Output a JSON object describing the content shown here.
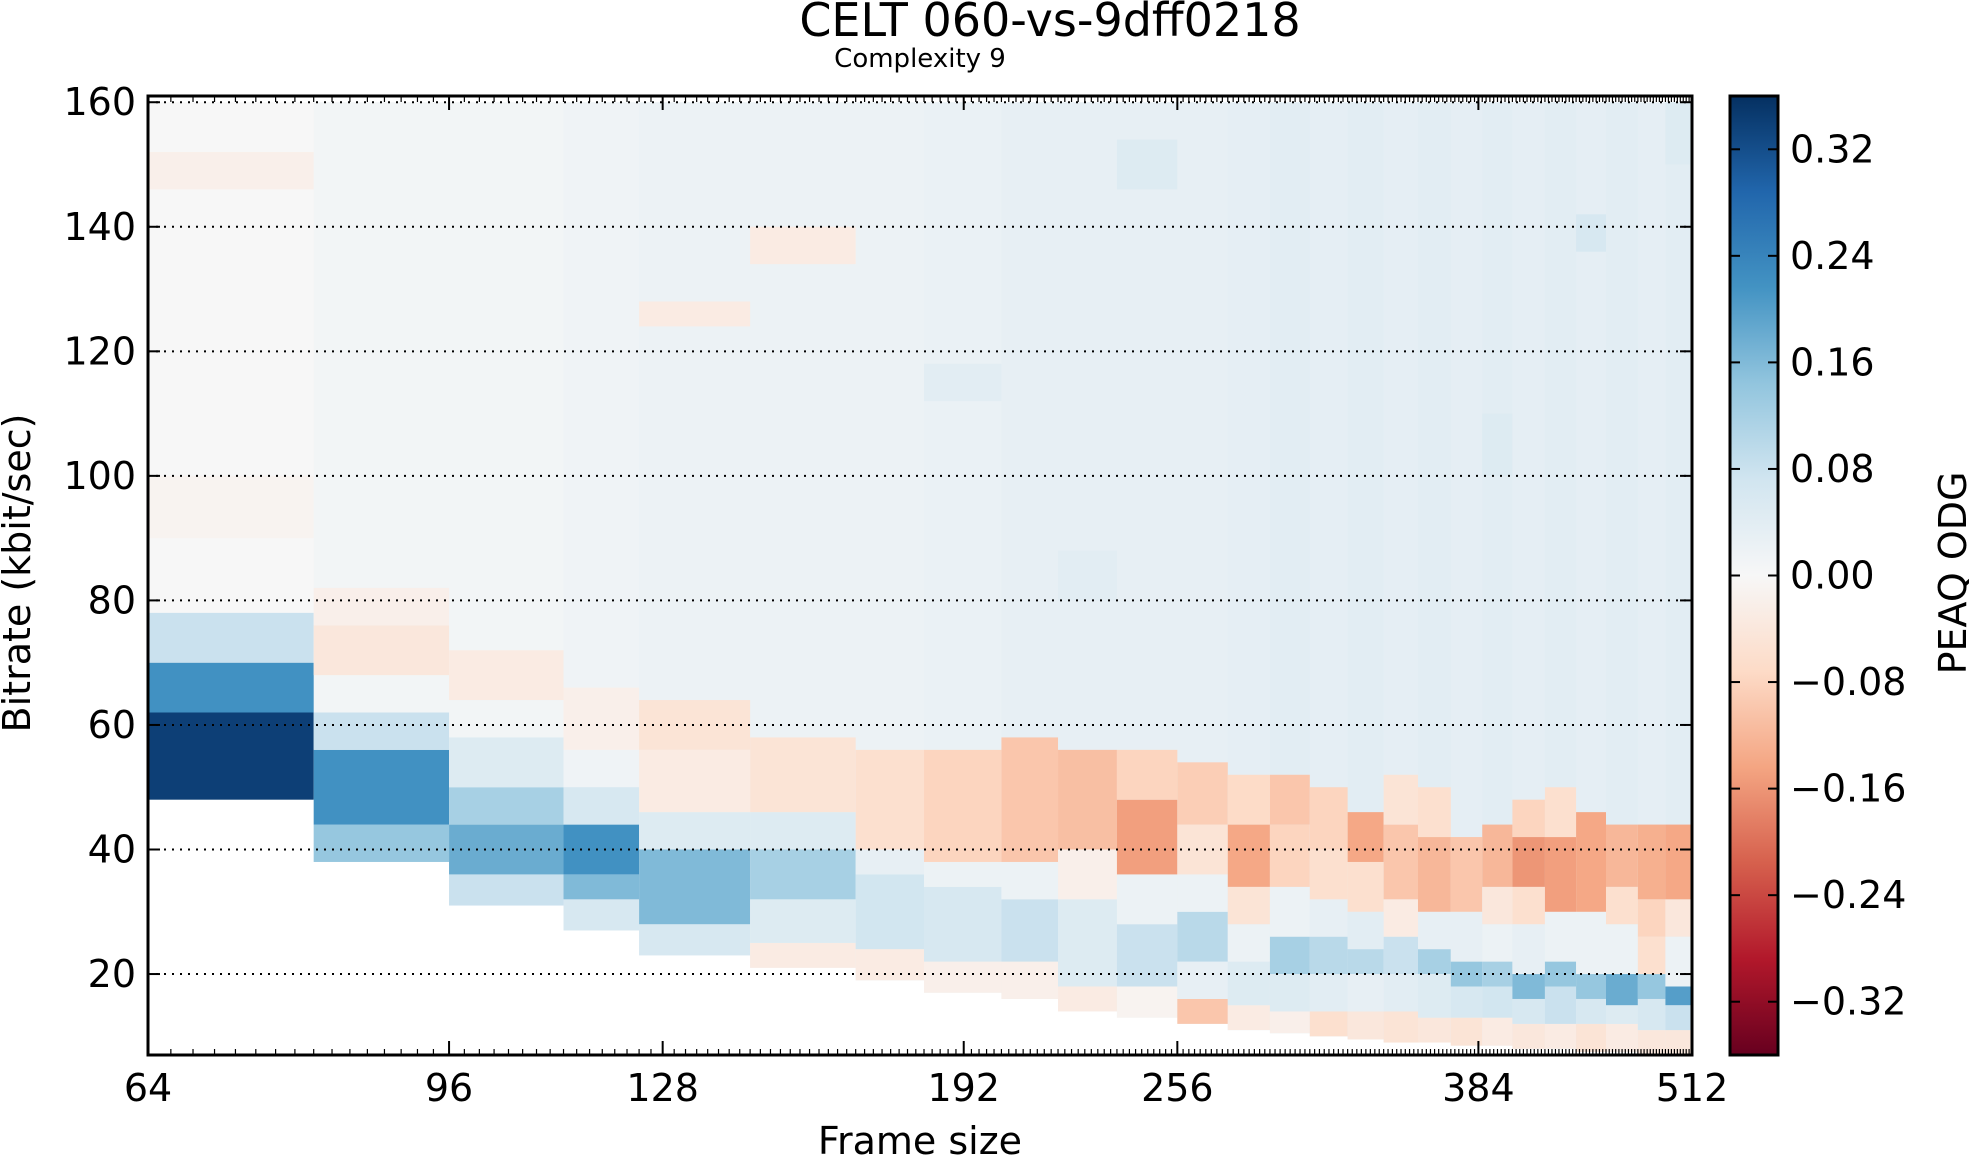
{
  "chart_data": {
    "type": "heatmap",
    "title": "CELT 060-vs-9dff0218",
    "subtitle": "Complexity 9",
    "xlabel": "Frame size",
    "ylabel": "Bitrate (kbit/sec)",
    "x_scale": "log2",
    "xlim": [
      64,
      512
    ],
    "ylim": [
      7,
      161
    ],
    "x_ticks": [
      64,
      96,
      128,
      192,
      256,
      384,
      512
    ],
    "y_ticks": [
      20,
      40,
      60,
      80,
      100,
      120,
      140,
      160
    ],
    "grid": "horizontal dotted at y ticks",
    "colorbar": {
      "label": "PEAQ ODG",
      "colormap": "RdBu",
      "range": [
        -0.36,
        0.36
      ],
      "ticks": [
        0.32,
        0.24,
        0.16,
        0.08,
        0.0,
        -0.08,
        -0.16,
        -0.24,
        -0.32
      ],
      "tick_labels": [
        "0.32",
        "0.24",
        "0.16",
        "0.08",
        "0.00",
        "−0.08",
        "−0.16",
        "−0.24",
        "−0.32"
      ]
    },
    "columns": [
      {
        "x0": 64,
        "x1": 80,
        "ymin": 48,
        "ymax": 160,
        "value": 0.0,
        "bands": [
          {
            "y0": 48,
            "y1": 62,
            "value": 0.34
          },
          {
            "y0": 62,
            "y1": 70,
            "value": 0.22
          },
          {
            "y0": 70,
            "y1": 78,
            "value": 0.08
          },
          {
            "y0": 146,
            "y1": 152,
            "value": -0.02
          },
          {
            "y0": 90,
            "y1": 100,
            "value": -0.01
          }
        ]
      },
      {
        "x0": 80,
        "x1": 96,
        "ymin": 38,
        "ymax": 160,
        "value": 0.01,
        "bands": [
          {
            "y0": 38,
            "y1": 44,
            "value": 0.14
          },
          {
            "y0": 44,
            "y1": 56,
            "value": 0.22
          },
          {
            "y0": 56,
            "y1": 62,
            "value": 0.08
          },
          {
            "y0": 68,
            "y1": 76,
            "value": -0.04
          },
          {
            "y0": 76,
            "y1": 82,
            "value": -0.02
          }
        ]
      },
      {
        "x0": 96,
        "x1": 112,
        "ymin": 31,
        "ymax": 160,
        "value": 0.01,
        "bands": [
          {
            "y0": 31,
            "y1": 36,
            "value": 0.08
          },
          {
            "y0": 36,
            "y1": 44,
            "value": 0.18
          },
          {
            "y0": 44,
            "y1": 50,
            "value": 0.12
          },
          {
            "y0": 50,
            "y1": 58,
            "value": 0.05
          },
          {
            "y0": 64,
            "y1": 72,
            "value": -0.03
          }
        ]
      },
      {
        "x0": 112,
        "x1": 124,
        "ymin": 27,
        "ymax": 160,
        "value": 0.015,
        "bands": [
          {
            "y0": 27,
            "y1": 32,
            "value": 0.06
          },
          {
            "y0": 32,
            "y1": 36,
            "value": 0.16
          },
          {
            "y0": 36,
            "y1": 44,
            "value": 0.22
          },
          {
            "y0": 44,
            "y1": 50,
            "value": 0.06
          },
          {
            "y0": 56,
            "y1": 66,
            "value": -0.02
          }
        ]
      },
      {
        "x0": 124,
        "x1": 144,
        "ymin": 23,
        "ymax": 160,
        "value": 0.02,
        "bands": [
          {
            "y0": 23,
            "y1": 28,
            "value": 0.06
          },
          {
            "y0": 28,
            "y1": 40,
            "value": 0.16
          },
          {
            "y0": 40,
            "y1": 46,
            "value": 0.05
          },
          {
            "y0": 46,
            "y1": 56,
            "value": -0.03
          },
          {
            "y0": 56,
            "y1": 64,
            "value": -0.05
          },
          {
            "y0": 124,
            "y1": 128,
            "value": -0.03
          }
        ]
      },
      {
        "x0": 144,
        "x1": 166,
        "ymin": 21,
        "ymax": 160,
        "value": 0.02,
        "bands": [
          {
            "y0": 21,
            "y1": 25,
            "value": -0.03
          },
          {
            "y0": 25,
            "y1": 32,
            "value": 0.05
          },
          {
            "y0": 32,
            "y1": 40,
            "value": 0.12
          },
          {
            "y0": 40,
            "y1": 46,
            "value": 0.05
          },
          {
            "y0": 46,
            "y1": 58,
            "value": -0.05
          },
          {
            "y0": 134,
            "y1": 140,
            "value": -0.03
          }
        ]
      },
      {
        "x0": 166,
        "x1": 182,
        "ymin": 19,
        "ymax": 160,
        "value": 0.02,
        "bands": [
          {
            "y0": 19,
            "y1": 24,
            "value": -0.03
          },
          {
            "y0": 24,
            "y1": 36,
            "value": 0.07
          },
          {
            "y0": 36,
            "y1": 40,
            "value": 0.03
          },
          {
            "y0": 40,
            "y1": 56,
            "value": -0.06
          }
        ]
      },
      {
        "x0": 182,
        "x1": 202,
        "ymin": 17,
        "ymax": 160,
        "value": 0.025,
        "bands": [
          {
            "y0": 17,
            "y1": 22,
            "value": -0.02
          },
          {
            "y0": 22,
            "y1": 34,
            "value": 0.06
          },
          {
            "y0": 34,
            "y1": 38,
            "value": 0.02
          },
          {
            "y0": 38,
            "y1": 56,
            "value": -0.08
          },
          {
            "y0": 112,
            "y1": 118,
            "value": 0.04
          }
        ]
      },
      {
        "x0": 202,
        "x1": 218,
        "ymin": 16,
        "ymax": 160,
        "value": 0.03,
        "bands": [
          {
            "y0": 16,
            "y1": 22,
            "value": -0.02
          },
          {
            "y0": 22,
            "y1": 32,
            "value": 0.08
          },
          {
            "y0": 32,
            "y1": 38,
            "value": 0.02
          },
          {
            "y0": 38,
            "y1": 58,
            "value": -0.1
          }
        ]
      },
      {
        "x0": 218,
        "x1": 236,
        "ymin": 14,
        "ymax": 160,
        "value": 0.03,
        "bands": [
          {
            "y0": 14,
            "y1": 18,
            "value": -0.03
          },
          {
            "y0": 18,
            "y1": 32,
            "value": 0.05
          },
          {
            "y0": 32,
            "y1": 40,
            "value": -0.02
          },
          {
            "y0": 40,
            "y1": 56,
            "value": -0.11
          },
          {
            "y0": 80,
            "y1": 88,
            "value": 0.04
          }
        ]
      },
      {
        "x0": 236,
        "x1": 256,
        "ymin": 13,
        "ymax": 160,
        "value": 0.03,
        "bands": [
          {
            "y0": 13,
            "y1": 18,
            "value": -0.01
          },
          {
            "y0": 18,
            "y1": 28,
            "value": 0.08
          },
          {
            "y0": 28,
            "y1": 36,
            "value": 0.02
          },
          {
            "y0": 36,
            "y1": 48,
            "value": -0.15
          },
          {
            "y0": 48,
            "y1": 56,
            "value": -0.08
          },
          {
            "y0": 146,
            "y1": 154,
            "value": 0.05
          }
        ]
      },
      {
        "x0": 256,
        "x1": 274,
        "ymin": 12,
        "ymax": 160,
        "value": 0.03,
        "bands": [
          {
            "y0": 12,
            "y1": 16,
            "value": -0.1
          },
          {
            "y0": 16,
            "y1": 22,
            "value": 0.03
          },
          {
            "y0": 22,
            "y1": 30,
            "value": 0.1
          },
          {
            "y0": 30,
            "y1": 36,
            "value": 0.02
          },
          {
            "y0": 36,
            "y1": 44,
            "value": -0.05
          },
          {
            "y0": 44,
            "y1": 54,
            "value": -0.09
          }
        ]
      },
      {
        "x0": 274,
        "x1": 290,
        "ymin": 11,
        "ymax": 160,
        "value": 0.035,
        "bands": [
          {
            "y0": 11,
            "y1": 15,
            "value": -0.03
          },
          {
            "y0": 15,
            "y1": 22,
            "value": 0.05
          },
          {
            "y0": 22,
            "y1": 28,
            "value": 0.02
          },
          {
            "y0": 28,
            "y1": 34,
            "value": -0.05
          },
          {
            "y0": 34,
            "y1": 44,
            "value": -0.14
          },
          {
            "y0": 44,
            "y1": 52,
            "value": -0.07
          }
        ]
      },
      {
        "x0": 290,
        "x1": 306,
        "ymin": 10.5,
        "ymax": 160,
        "value": 0.04,
        "bands": [
          {
            "y0": 10.5,
            "y1": 14,
            "value": -0.02
          },
          {
            "y0": 14,
            "y1": 20,
            "value": 0.05
          },
          {
            "y0": 20,
            "y1": 26,
            "value": 0.12
          },
          {
            "y0": 26,
            "y1": 34,
            "value": 0.02
          },
          {
            "y0": 34,
            "y1": 44,
            "value": -0.08
          },
          {
            "y0": 44,
            "y1": 52,
            "value": -0.1
          }
        ]
      },
      {
        "x0": 306,
        "x1": 322,
        "ymin": 10,
        "ymax": 160,
        "value": 0.035,
        "bands": [
          {
            "y0": 10,
            "y1": 14,
            "value": -0.06
          },
          {
            "y0": 14,
            "y1": 20,
            "value": 0.04
          },
          {
            "y0": 20,
            "y1": 26,
            "value": 0.1
          },
          {
            "y0": 26,
            "y1": 32,
            "value": 0.03
          },
          {
            "y0": 32,
            "y1": 40,
            "value": -0.06
          },
          {
            "y0": 40,
            "y1": 50,
            "value": -0.08
          }
        ]
      },
      {
        "x0": 322,
        "x1": 338,
        "ymin": 9.5,
        "ymax": 160,
        "value": 0.04,
        "bands": [
          {
            "y0": 9.5,
            "y1": 14,
            "value": -0.04
          },
          {
            "y0": 14,
            "y1": 20,
            "value": 0.03
          },
          {
            "y0": 20,
            "y1": 24,
            "value": 0.1
          },
          {
            "y0": 24,
            "y1": 30,
            "value": 0.04
          },
          {
            "y0": 30,
            "y1": 38,
            "value": -0.06
          },
          {
            "y0": 38,
            "y1": 46,
            "value": -0.14
          }
        ]
      },
      {
        "x0": 338,
        "x1": 354,
        "ymin": 9,
        "ymax": 160,
        "value": 0.035,
        "bands": [
          {
            "y0": 9,
            "y1": 14,
            "value": -0.05
          },
          {
            "y0": 14,
            "y1": 20,
            "value": 0.04
          },
          {
            "y0": 20,
            "y1": 26,
            "value": 0.08
          },
          {
            "y0": 26,
            "y1": 32,
            "value": -0.03
          },
          {
            "y0": 32,
            "y1": 44,
            "value": -0.1
          },
          {
            "y0": 44,
            "y1": 52,
            "value": -0.05
          }
        ]
      },
      {
        "x0": 354,
        "x1": 370,
        "ymin": 9,
        "ymax": 160,
        "value": 0.04,
        "bands": [
          {
            "y0": 9,
            "y1": 13,
            "value": -0.04
          },
          {
            "y0": 13,
            "y1": 20,
            "value": 0.05
          },
          {
            "y0": 20,
            "y1": 24,
            "value": 0.12
          },
          {
            "y0": 24,
            "y1": 30,
            "value": 0.03
          },
          {
            "y0": 30,
            "y1": 42,
            "value": -0.12
          },
          {
            "y0": 42,
            "y1": 50,
            "value": -0.06
          }
        ]
      },
      {
        "x0": 370,
        "x1": 386,
        "ymin": 8.5,
        "ymax": 160,
        "value": 0.035,
        "bands": [
          {
            "y0": 8.5,
            "y1": 13,
            "value": -0.05
          },
          {
            "y0": 13,
            "y1": 18,
            "value": 0.06
          },
          {
            "y0": 18,
            "y1": 22,
            "value": 0.14
          },
          {
            "y0": 22,
            "y1": 30,
            "value": 0.03
          },
          {
            "y0": 30,
            "y1": 42,
            "value": -0.1
          }
        ]
      },
      {
        "x0": 386,
        "x1": 402,
        "ymin": 8.5,
        "ymax": 160,
        "value": 0.04,
        "bands": [
          {
            "y0": 8.5,
            "y1": 13,
            "value": -0.03
          },
          {
            "y0": 13,
            "y1": 18,
            "value": 0.07
          },
          {
            "y0": 18,
            "y1": 22,
            "value": 0.12
          },
          {
            "y0": 22,
            "y1": 28,
            "value": 0.02
          },
          {
            "y0": 28,
            "y1": 34,
            "value": -0.04
          },
          {
            "y0": 34,
            "y1": 44,
            "value": -0.12
          },
          {
            "y0": 100,
            "y1": 110,
            "value": 0.05
          }
        ]
      },
      {
        "x0": 402,
        "x1": 420,
        "ymin": 8,
        "ymax": 160,
        "value": 0.035,
        "bands": [
          {
            "y0": 8,
            "y1": 12,
            "value": -0.04
          },
          {
            "y0": 12,
            "y1": 16,
            "value": 0.06
          },
          {
            "y0": 16,
            "y1": 20,
            "value": 0.16
          },
          {
            "y0": 20,
            "y1": 28,
            "value": 0.03
          },
          {
            "y0": 28,
            "y1": 34,
            "value": -0.06
          },
          {
            "y0": 34,
            "y1": 42,
            "value": -0.16
          },
          {
            "y0": 42,
            "y1": 48,
            "value": -0.08
          }
        ]
      },
      {
        "x0": 420,
        "x1": 438,
        "ymin": 8,
        "ymax": 160,
        "value": 0.04,
        "bands": [
          {
            "y0": 8,
            "y1": 12,
            "value": -0.03
          },
          {
            "y0": 12,
            "y1": 18,
            "value": 0.08
          },
          {
            "y0": 18,
            "y1": 22,
            "value": 0.14
          },
          {
            "y0": 22,
            "y1": 30,
            "value": 0.02
          },
          {
            "y0": 30,
            "y1": 42,
            "value": -0.15
          },
          {
            "y0": 42,
            "y1": 50,
            "value": -0.06
          }
        ]
      },
      {
        "x0": 438,
        "x1": 456,
        "ymin": 7.5,
        "ymax": 160,
        "value": 0.035,
        "bands": [
          {
            "y0": 7.5,
            "y1": 12,
            "value": -0.05
          },
          {
            "y0": 12,
            "y1": 16,
            "value": 0.06
          },
          {
            "y0": 16,
            "y1": 20,
            "value": 0.14
          },
          {
            "y0": 20,
            "y1": 30,
            "value": 0.02
          },
          {
            "y0": 30,
            "y1": 46,
            "value": -0.14
          },
          {
            "y0": 136,
            "y1": 142,
            "value": 0.06
          }
        ]
      },
      {
        "x0": 456,
        "x1": 476,
        "ymin": 7.5,
        "ymax": 160,
        "value": 0.04,
        "bands": [
          {
            "y0": 7.5,
            "y1": 12,
            "value": -0.03
          },
          {
            "y0": 12,
            "y1": 15,
            "value": 0.05
          },
          {
            "y0": 15,
            "y1": 20,
            "value": 0.18
          },
          {
            "y0": 20,
            "y1": 28,
            "value": 0.02
          },
          {
            "y0": 28,
            "y1": 34,
            "value": -0.06
          },
          {
            "y0": 34,
            "y1": 44,
            "value": -0.12
          }
        ]
      },
      {
        "x0": 476,
        "x1": 494,
        "ymin": 7,
        "ymax": 160,
        "value": 0.035,
        "bands": [
          {
            "y0": 7,
            "y1": 11,
            "value": -0.04
          },
          {
            "y0": 11,
            "y1": 16,
            "value": 0.06
          },
          {
            "y0": 16,
            "y1": 20,
            "value": 0.14
          },
          {
            "y0": 20,
            "y1": 26,
            "value": -0.06
          },
          {
            "y0": 26,
            "y1": 32,
            "value": -0.08
          },
          {
            "y0": 32,
            "y1": 44,
            "value": -0.13
          }
        ]
      },
      {
        "x0": 494,
        "x1": 512,
        "ymin": 7,
        "ymax": 160,
        "value": 0.04,
        "bands": [
          {
            "y0": 7,
            "y1": 11,
            "value": -0.04
          },
          {
            "y0": 11,
            "y1": 15,
            "value": 0.08
          },
          {
            "y0": 15,
            "y1": 18,
            "value": 0.2
          },
          {
            "y0": 18,
            "y1": 26,
            "value": 0.02
          },
          {
            "y0": 26,
            "y1": 32,
            "value": -0.04
          },
          {
            "y0": 32,
            "y1": 44,
            "value": -0.14
          },
          {
            "y0": 150,
            "y1": 160,
            "value": 0.05
          }
        ]
      }
    ]
  }
}
